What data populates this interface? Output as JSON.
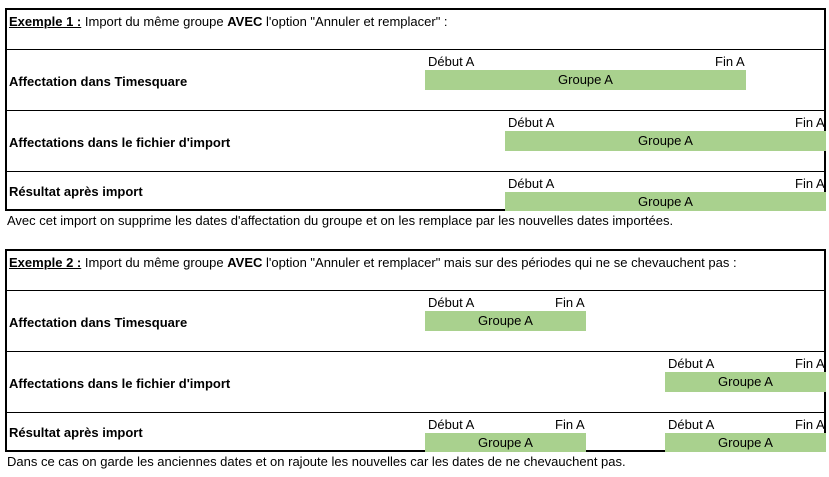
{
  "example1": {
    "header": {
      "label": "Exemple 1 :",
      "text1": " Import du même groupe ",
      "bold": "AVEC",
      "text2": " l'option \"Annuler et remplacer\" :"
    },
    "rows": [
      {
        "label": "Affectation dans Timesquare",
        "bars": [
          {
            "start_label": "Début A",
            "end_label": "Fin A",
            "group": "Groupe A"
          }
        ]
      },
      {
        "label": "Affectations dans le fichier d'import",
        "bars": [
          {
            "start_label": "Début A",
            "end_label": "Fin A",
            "group": "Groupe A"
          }
        ]
      },
      {
        "label": "Résultat après import",
        "bars": [
          {
            "start_label": "Début A",
            "end_label": "Fin A",
            "group": "Groupe A"
          }
        ]
      }
    ],
    "note": "Avec cet import on supprime les dates d'affectation du groupe et on les remplace par les nouvelles dates importées."
  },
  "example2": {
    "header": {
      "label": "Exemple 2 :",
      "text1": " Import du même groupe ",
      "bold": "AVEC",
      "text2": " l'option \"Annuler et remplacer\" mais sur des périodes qui ne se chevauchent pas :"
    },
    "rows": [
      {
        "label": "Affectation dans Timesquare",
        "bars": [
          {
            "start_label": "Début A",
            "end_label": "Fin A",
            "group": "Groupe A"
          }
        ]
      },
      {
        "label": "Affectations dans le fichier d'import",
        "bars": [
          {
            "start_label": "Début A",
            "end_label": "Fin A",
            "group": "Groupe A"
          }
        ]
      },
      {
        "label": "Résultat après import",
        "bars": [
          {
            "start_label": "Début A",
            "end_label": "Fin A",
            "group": "Groupe A"
          },
          {
            "start_label": "Début A",
            "end_label": "Fin A",
            "group": "Groupe A"
          }
        ]
      }
    ],
    "note": "Dans ce cas on garde les anciennes dates et on rajoute les nouvelles car les dates de ne chevauchent pas."
  },
  "colors": {
    "bar": "#a9d18e",
    "border": "#000000"
  }
}
